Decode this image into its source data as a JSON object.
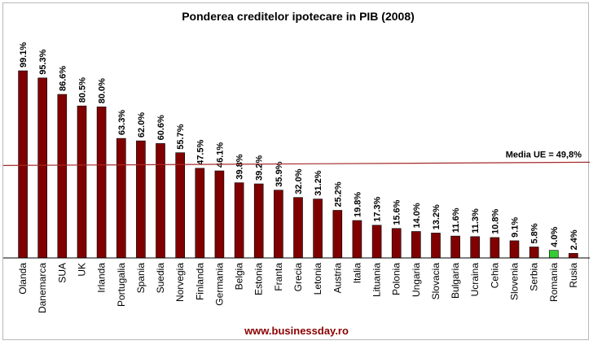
{
  "chart_data": {
    "type": "bar",
    "title": "Ponderea creditelor ipotecare in PIB (2008)",
    "categories": [
      "Olanda",
      "Danemarca",
      "SUA",
      "UK",
      "Irlanda",
      "Portugalia",
      "Spania",
      "Suedia",
      "Norvegia",
      "Finlanda",
      "Germania",
      "Belgia",
      "Estonia",
      "Franta",
      "Grecia",
      "Letonia",
      "Austria",
      "Italia",
      "Lituania",
      "Polonia",
      "Ungaria",
      "Slovacia",
      "Bulgaria",
      "Ucraina",
      "Cehia",
      "Slovenia",
      "Serbia",
      "Romania",
      "Rusia"
    ],
    "values": [
      99.1,
      95.3,
      86.6,
      80.5,
      80.0,
      63.3,
      62.0,
      60.6,
      55.7,
      47.5,
      46.1,
      39.8,
      39.2,
      35.9,
      32.0,
      31.2,
      25.2,
      19.8,
      17.3,
      15.6,
      14.0,
      13.2,
      11.6,
      11.3,
      10.8,
      9.1,
      5.8,
      4.0,
      2.4
    ],
    "value_labels": [
      "99.1%",
      "95.3%",
      "86.6%",
      "80.5%",
      "80.0%",
      "63.3%",
      "62.0%",
      "60.6%",
      "55.7%",
      "47.5%",
      "46.1%",
      "39.8%",
      "39.2%",
      "35.9%",
      "32.0%",
      "31.2%",
      "25.2%",
      "19.8%",
      "17.3%",
      "15.6%",
      "14.0%",
      "13.2%",
      "11.6%",
      "11.3%",
      "10.8%",
      "9.1%",
      "5.8%",
      "4.0%",
      "2.4%"
    ],
    "ylim": [
      0,
      100
    ],
    "grid": false,
    "legend": "none",
    "bar_color": "#800000",
    "highlight_category": "Romania",
    "highlight_color": "#33cc33",
    "reference_line": {
      "label": "Media UE = 49,8%",
      "value": 49.8,
      "color": "#a52a2a"
    }
  },
  "source": "www.businessday.ro"
}
